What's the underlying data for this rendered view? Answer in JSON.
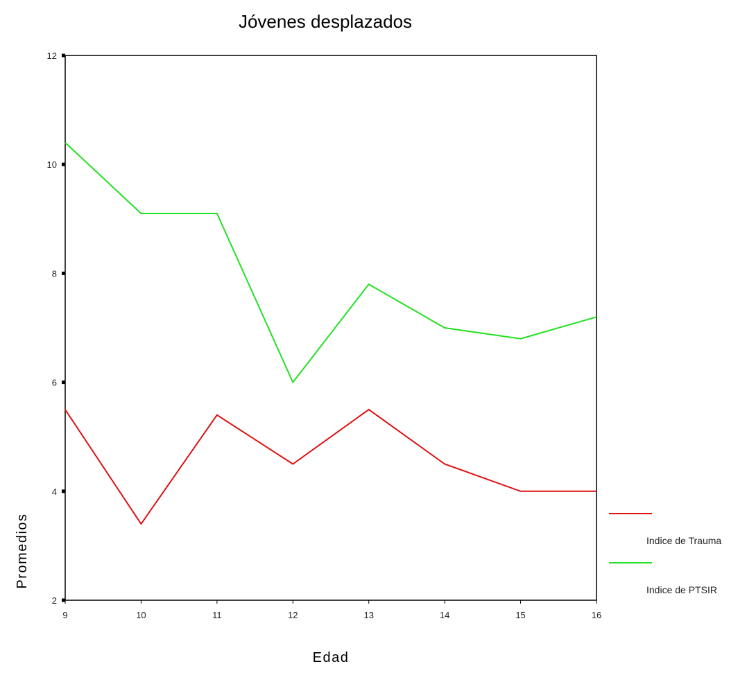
{
  "chart_data": {
    "type": "line",
    "title": "Jóvenes desplazados",
    "xlabel": "Edad",
    "ylabel": "Promedios",
    "x": [
      9,
      10,
      11,
      12,
      13,
      14,
      15,
      16
    ],
    "xlim": [
      9,
      16
    ],
    "ylim": [
      2,
      12
    ],
    "yticks": [
      2,
      4,
      6,
      8,
      10,
      12
    ],
    "grid": false,
    "legend_position": "right",
    "series": [
      {
        "name": "Indice de Trauma",
        "color": "#dd1111",
        "values": [
          5.5,
          3.4,
          5.4,
          4.5,
          5.5,
          4.5,
          4.0,
          4.0
        ]
      },
      {
        "name": "Indice de PTSIR",
        "color": "#22e022",
        "values": [
          10.4,
          9.1,
          9.1,
          6.0,
          7.8,
          7.0,
          6.8,
          7.2
        ]
      }
    ]
  }
}
